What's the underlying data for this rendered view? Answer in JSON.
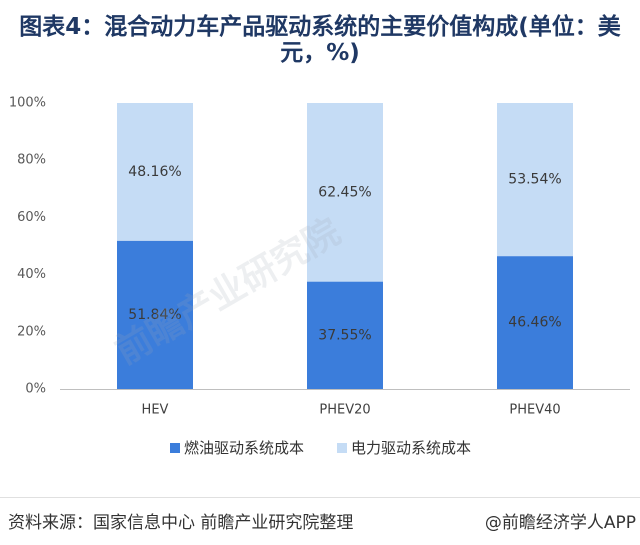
{
  "chart_data": {
    "type": "bar",
    "stacked": true,
    "title_lines": [
      "图表4：混合动力车产品驱动系统的主要价值构成(单位：美",
      "元，%)"
    ],
    "categories": [
      "HEV",
      "PHEV20",
      "PHEV40"
    ],
    "series": [
      {
        "name": "燃油驱动系统成本",
        "color": "#3b7ddb",
        "values": [
          51.84,
          37.55,
          46.46
        ]
      },
      {
        "name": "电力驱动系统成本",
        "color": "#c5dcf5",
        "values": [
          48.16,
          62.45,
          53.54
        ]
      }
    ],
    "label_suffix": "%",
    "yticks": [
      0,
      20,
      40,
      60,
      80,
      100
    ],
    "ytick_labels": [
      "0%",
      "20%",
      "40%",
      "60%",
      "80%",
      "100%"
    ],
    "ylim": [
      0,
      100
    ],
    "xlabel": "",
    "ylabel": "",
    "grid": false,
    "legend": "bottom"
  },
  "watermark": {
    "text": "前瞻产业研究院"
  },
  "footer": {
    "source": "资料来源：国家信息中心 前瞻产业研究院整理",
    "credit": "@前瞻经济学人APP"
  },
  "colors": {
    "title": "#1f3864",
    "axis": "#bfbfbf"
  }
}
